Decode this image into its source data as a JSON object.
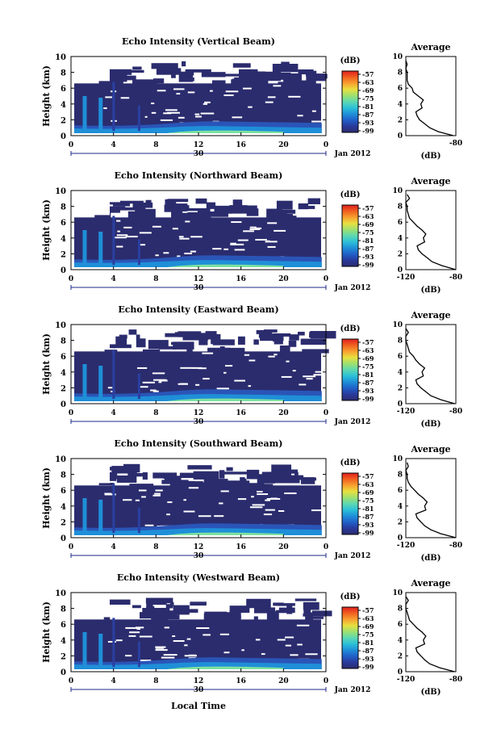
{
  "figure": {
    "shared": {
      "ylabel": "Height (km)",
      "cbar_unit": "(dB)",
      "cbar_ticks": [
        "-57",
        "-63",
        "-69",
        "-75",
        "-81",
        "-87",
        "-93",
        "-99"
      ],
      "x_ticks": [
        "0",
        "4",
        "8",
        "12",
        "16",
        "20",
        "0"
      ],
      "date_marker": "30",
      "date_label": "Jan 2012",
      "y_ticks": [
        "0",
        "2",
        "4",
        "6",
        "8",
        "10"
      ],
      "avg_title": "Average",
      "avg_xlabel": "(dB)",
      "xlabel_bottom": "Local Time"
    },
    "colors": {
      "low": "#2b2c6e",
      "mid": "#1f8fd8",
      "high": "#7fe0a0",
      "colorbar": [
        "#2b2c6e",
        "#2a3a9c",
        "#2060c8",
        "#1f8fd8",
        "#2cc0d8",
        "#5ed8b0",
        "#9ee070",
        "#e8e040",
        "#f8a030",
        "#f06020",
        "#e02020"
      ]
    }
  },
  "chart_data": [
    {
      "type": "heatmap",
      "title": "Echo Intensity (Vertical Beam)",
      "x_range_hours": [
        0,
        24
      ],
      "y_range_km": [
        0,
        10
      ],
      "color_range_db": [
        -99,
        -57
      ],
      "profile": {
        "title": "Average",
        "x_ticks": [
          "",
          "-80"
        ],
        "xlim": [
          -120,
          -80
        ],
        "heights_km": [
          0,
          0.5,
          1,
          1.5,
          2,
          2.5,
          3,
          3.5,
          4,
          4.5,
          5,
          5.5,
          6,
          6.5,
          7,
          7.5,
          8,
          8.5,
          9,
          9.5
        ],
        "values_db": [
          -82,
          -94,
          -101,
          -105,
          -109,
          -111,
          -112,
          -107,
          -108,
          -106,
          -110,
          -114,
          -115,
          -118,
          -119,
          -119,
          -119,
          -120,
          -119,
          -120
        ]
      }
    },
    {
      "type": "heatmap",
      "title": "Echo Intensity (Northward Beam)",
      "x_range_hours": [
        0,
        24
      ],
      "y_range_km": [
        0,
        10
      ],
      "color_range_db": [
        -99,
        -57
      ],
      "profile": {
        "title": "Average",
        "x_ticks": [
          "-120",
          "-80"
        ],
        "xlim": [
          -120,
          -80
        ],
        "heights_km": [
          0,
          0.5,
          1,
          1.5,
          2,
          2.5,
          3,
          3.5,
          4,
          4.5,
          5,
          5.5,
          6,
          6.5,
          7,
          7.5,
          8,
          8.5,
          9,
          9.5
        ],
        "values_db": [
          -80,
          -91,
          -99,
          -103,
          -107,
          -110,
          -111,
          -105,
          -106,
          -104,
          -107,
          -111,
          -114,
          -117,
          -118,
          -119,
          -119,
          -120,
          -117,
          -119
        ]
      }
    },
    {
      "type": "heatmap",
      "title": "Echo Intensity (Eastward Beam)",
      "x_range_hours": [
        0,
        24
      ],
      "y_range_km": [
        0,
        10
      ],
      "color_range_db": [
        -99,
        -57
      ],
      "profile": {
        "title": "Average",
        "x_ticks": [
          "-120",
          "-80"
        ],
        "xlim": [
          -120,
          -80
        ],
        "heights_km": [
          0,
          0.5,
          1,
          1.5,
          2,
          2.5,
          3,
          3.5,
          4,
          4.5,
          5,
          5.5,
          6,
          6.5,
          7,
          7.5,
          8,
          8.5,
          9,
          9.5
        ],
        "values_db": [
          -81,
          -92,
          -100,
          -104,
          -108,
          -111,
          -112,
          -106,
          -107,
          -105,
          -109,
          -112,
          -114,
          -117,
          -118,
          -119,
          -120,
          -120,
          -118,
          -120
        ]
      }
    },
    {
      "type": "heatmap",
      "title": "Echo Intensity (Southward Beam)",
      "x_range_hours": [
        0,
        24
      ],
      "y_range_km": [
        0,
        10
      ],
      "color_range_db": [
        -99,
        -57
      ],
      "profile": {
        "title": "Average",
        "x_ticks": [
          "-120",
          "-80"
        ],
        "xlim": [
          -120,
          -80
        ],
        "heights_km": [
          0,
          0.5,
          1,
          1.5,
          2,
          2.5,
          3,
          3.5,
          4,
          4.5,
          5,
          5.5,
          6,
          6.5,
          7,
          7.5,
          8,
          8.5,
          9,
          9.5
        ],
        "values_db": [
          -80,
          -92,
          -100,
          -105,
          -108,
          -111,
          -112,
          -104,
          -105,
          -103,
          -106,
          -110,
          -113,
          -116,
          -118,
          -119,
          -119,
          -120,
          -118,
          -119
        ]
      }
    },
    {
      "type": "heatmap",
      "title": "Echo Intensity (Westward Beam)",
      "x_range_hours": [
        0,
        24
      ],
      "y_range_km": [
        0,
        10
      ],
      "color_range_db": [
        -99,
        -57
      ],
      "profile": {
        "title": "Average",
        "x_ticks": [
          "-120",
          "-80"
        ],
        "xlim": [
          -120,
          -80
        ],
        "heights_km": [
          0,
          0.5,
          1,
          1.5,
          2,
          2.5,
          3,
          3.5,
          4,
          4.5,
          5,
          5.5,
          6,
          6.5,
          7,
          7.5,
          8,
          8.5,
          9,
          9.5
        ],
        "values_db": [
          -81,
          -93,
          -101,
          -105,
          -108,
          -111,
          -112,
          -105,
          -106,
          -104,
          -107,
          -111,
          -114,
          -117,
          -118,
          -119,
          -120,
          -120,
          -118,
          -120
        ]
      }
    }
  ]
}
